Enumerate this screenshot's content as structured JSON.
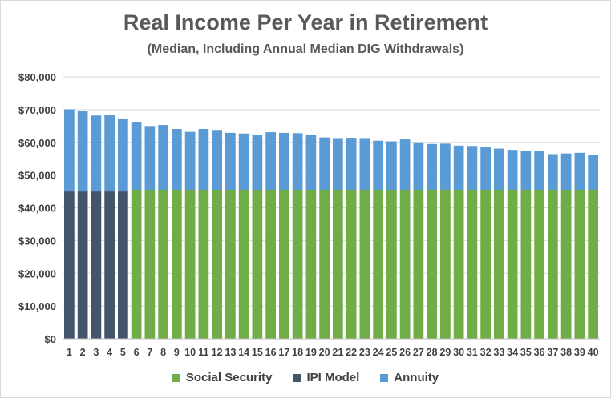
{
  "chart_data": {
    "type": "bar",
    "stacked": true,
    "title": "Real Income Per Year in Retirement",
    "subtitle": "(Median, Including Annual Median DIG Withdrawals)",
    "xlabel": "",
    "ylabel": "",
    "ylim": [
      0,
      80000
    ],
    "yticks": [
      "$0",
      "$10,000",
      "$20,000",
      "$30,000",
      "$40,000",
      "$50,000",
      "$60,000",
      "$70,000",
      "$80,000"
    ],
    "grid": true,
    "legend_position": "bottom",
    "categories": [
      "1",
      "2",
      "3",
      "4",
      "5",
      "6",
      "7",
      "8",
      "9",
      "10",
      "11",
      "12",
      "13",
      "14",
      "15",
      "16",
      "17",
      "18",
      "19",
      "20",
      "21",
      "22",
      "23",
      "24",
      "25",
      "26",
      "27",
      "28",
      "29",
      "30",
      "31",
      "32",
      "33",
      "34",
      "35",
      "36",
      "37",
      "38",
      "39",
      "40"
    ],
    "series": [
      {
        "name": "Social Security",
        "color": "#70ad47",
        "values": [
          0,
          0,
          0,
          0,
          0,
          45500,
          45500,
          45500,
          45500,
          45500,
          45500,
          45500,
          45500,
          45500,
          45500,
          45500,
          45500,
          45500,
          45500,
          45500,
          45500,
          45500,
          45500,
          45500,
          45500,
          45500,
          45500,
          45500,
          45500,
          45500,
          45500,
          45500,
          45500,
          45500,
          45500,
          45500,
          45500,
          45500,
          45500,
          45500
        ]
      },
      {
        "name": "IPI Model",
        "color": "#44546a",
        "values": [
          45000,
          45000,
          45000,
          45000,
          45000,
          0,
          0,
          0,
          0,
          0,
          0,
          0,
          0,
          0,
          0,
          0,
          0,
          0,
          0,
          0,
          0,
          0,
          0,
          0,
          0,
          0,
          0,
          0,
          0,
          0,
          0,
          0,
          0,
          0,
          0,
          0,
          0,
          0,
          0,
          0
        ]
      },
      {
        "name": "Annuity",
        "color": "#5b9bd5",
        "values": [
          25100,
          24500,
          23200,
          23500,
          22300,
          20800,
          19500,
          19800,
          18600,
          17700,
          18600,
          18300,
          17400,
          17200,
          16800,
          17600,
          17400,
          17300,
          16900,
          16000,
          15800,
          15900,
          15800,
          15000,
          14800,
          15400,
          14500,
          14000,
          14100,
          13500,
          13400,
          13000,
          12600,
          12200,
          12000,
          11900,
          10900,
          11100,
          11300,
          10600
        ]
      }
    ]
  }
}
